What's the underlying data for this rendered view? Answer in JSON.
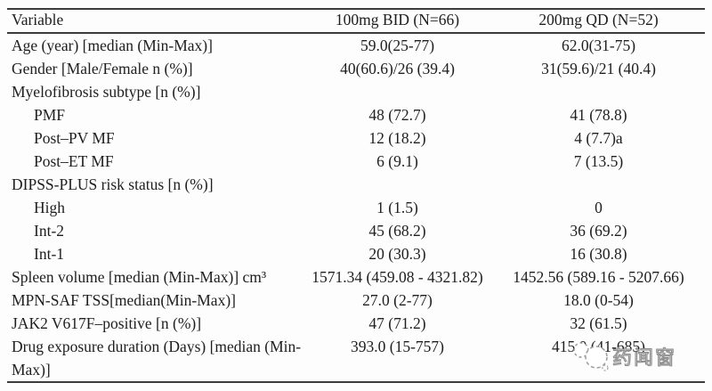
{
  "page": {
    "background": "#fdfdfd",
    "rule_color": "#3c3c3c",
    "text_color": "#1e1e1e"
  },
  "table": {
    "headers": [
      "Variable",
      "100mg BID (N=66)",
      "200mg QD (N=52)"
    ],
    "rows": [
      {
        "label": "Age (year) [median (Min-Max)]",
        "indent": false,
        "col2": "59.0(25-77)",
        "col3": "62.0(31-75)"
      },
      {
        "label": "Gender [Male/Female n (%)]",
        "indent": false,
        "col2": "40(60.6)/26 (39.4)",
        "col3": "31(59.6)/21 (40.4)"
      },
      {
        "label": "Myelofibrosis subtype [n (%)]",
        "indent": false,
        "col2": "",
        "col3": ""
      },
      {
        "label": "PMF",
        "indent": true,
        "col2": "48 (72.7)",
        "col3": "41 (78.8)"
      },
      {
        "label": "Post–PV MF",
        "indent": true,
        "col2": "12 (18.2)",
        "col3": "4 (7.7)a"
      },
      {
        "label": "Post–ET MF",
        "indent": true,
        "col2": "6 (9.1)",
        "col3": "7 (13.5)"
      },
      {
        "label": "DIPSS-PLUS risk status [n (%)]",
        "indent": false,
        "col2": "",
        "col3": ""
      },
      {
        "label": "High",
        "indent": true,
        "col2": "1 (1.5)",
        "col3": "0"
      },
      {
        "label": "Int-2",
        "indent": true,
        "col2": "45 (68.2)",
        "col3": "36 (69.2)"
      },
      {
        "label": "Int-1",
        "indent": true,
        "col2": "20 (30.3)",
        "col3": "16 (30.8)"
      },
      {
        "label": "Spleen volume [median (Min-Max)] cm³",
        "indent": false,
        "col2": "1571.34 (459.08 - 4321.82)",
        "col3": "1452.56 (589.16 - 5207.66)"
      },
      {
        "label": "MPN-SAF TSS[median(Min-Max)]",
        "indent": false,
        "col2": "27.0 (2-77)",
        "col3": "18.0 (0-54)"
      },
      {
        "label": "JAK2 V617F–positive [n (%)]",
        "indent": false,
        "col2": "47 (71.2)",
        "col3": "32 (61.5)"
      },
      {
        "label": "Drug exposure duration (Days) [median (Min-Max)]",
        "indent": false,
        "col2": "393.0 (15-757)",
        "col3": "415.0 (41-685)"
      }
    ]
  },
  "watermark": {
    "text": "药闻窗",
    "logo_icon": "dashed-bubble-logo",
    "color": "#9a9a9a"
  }
}
